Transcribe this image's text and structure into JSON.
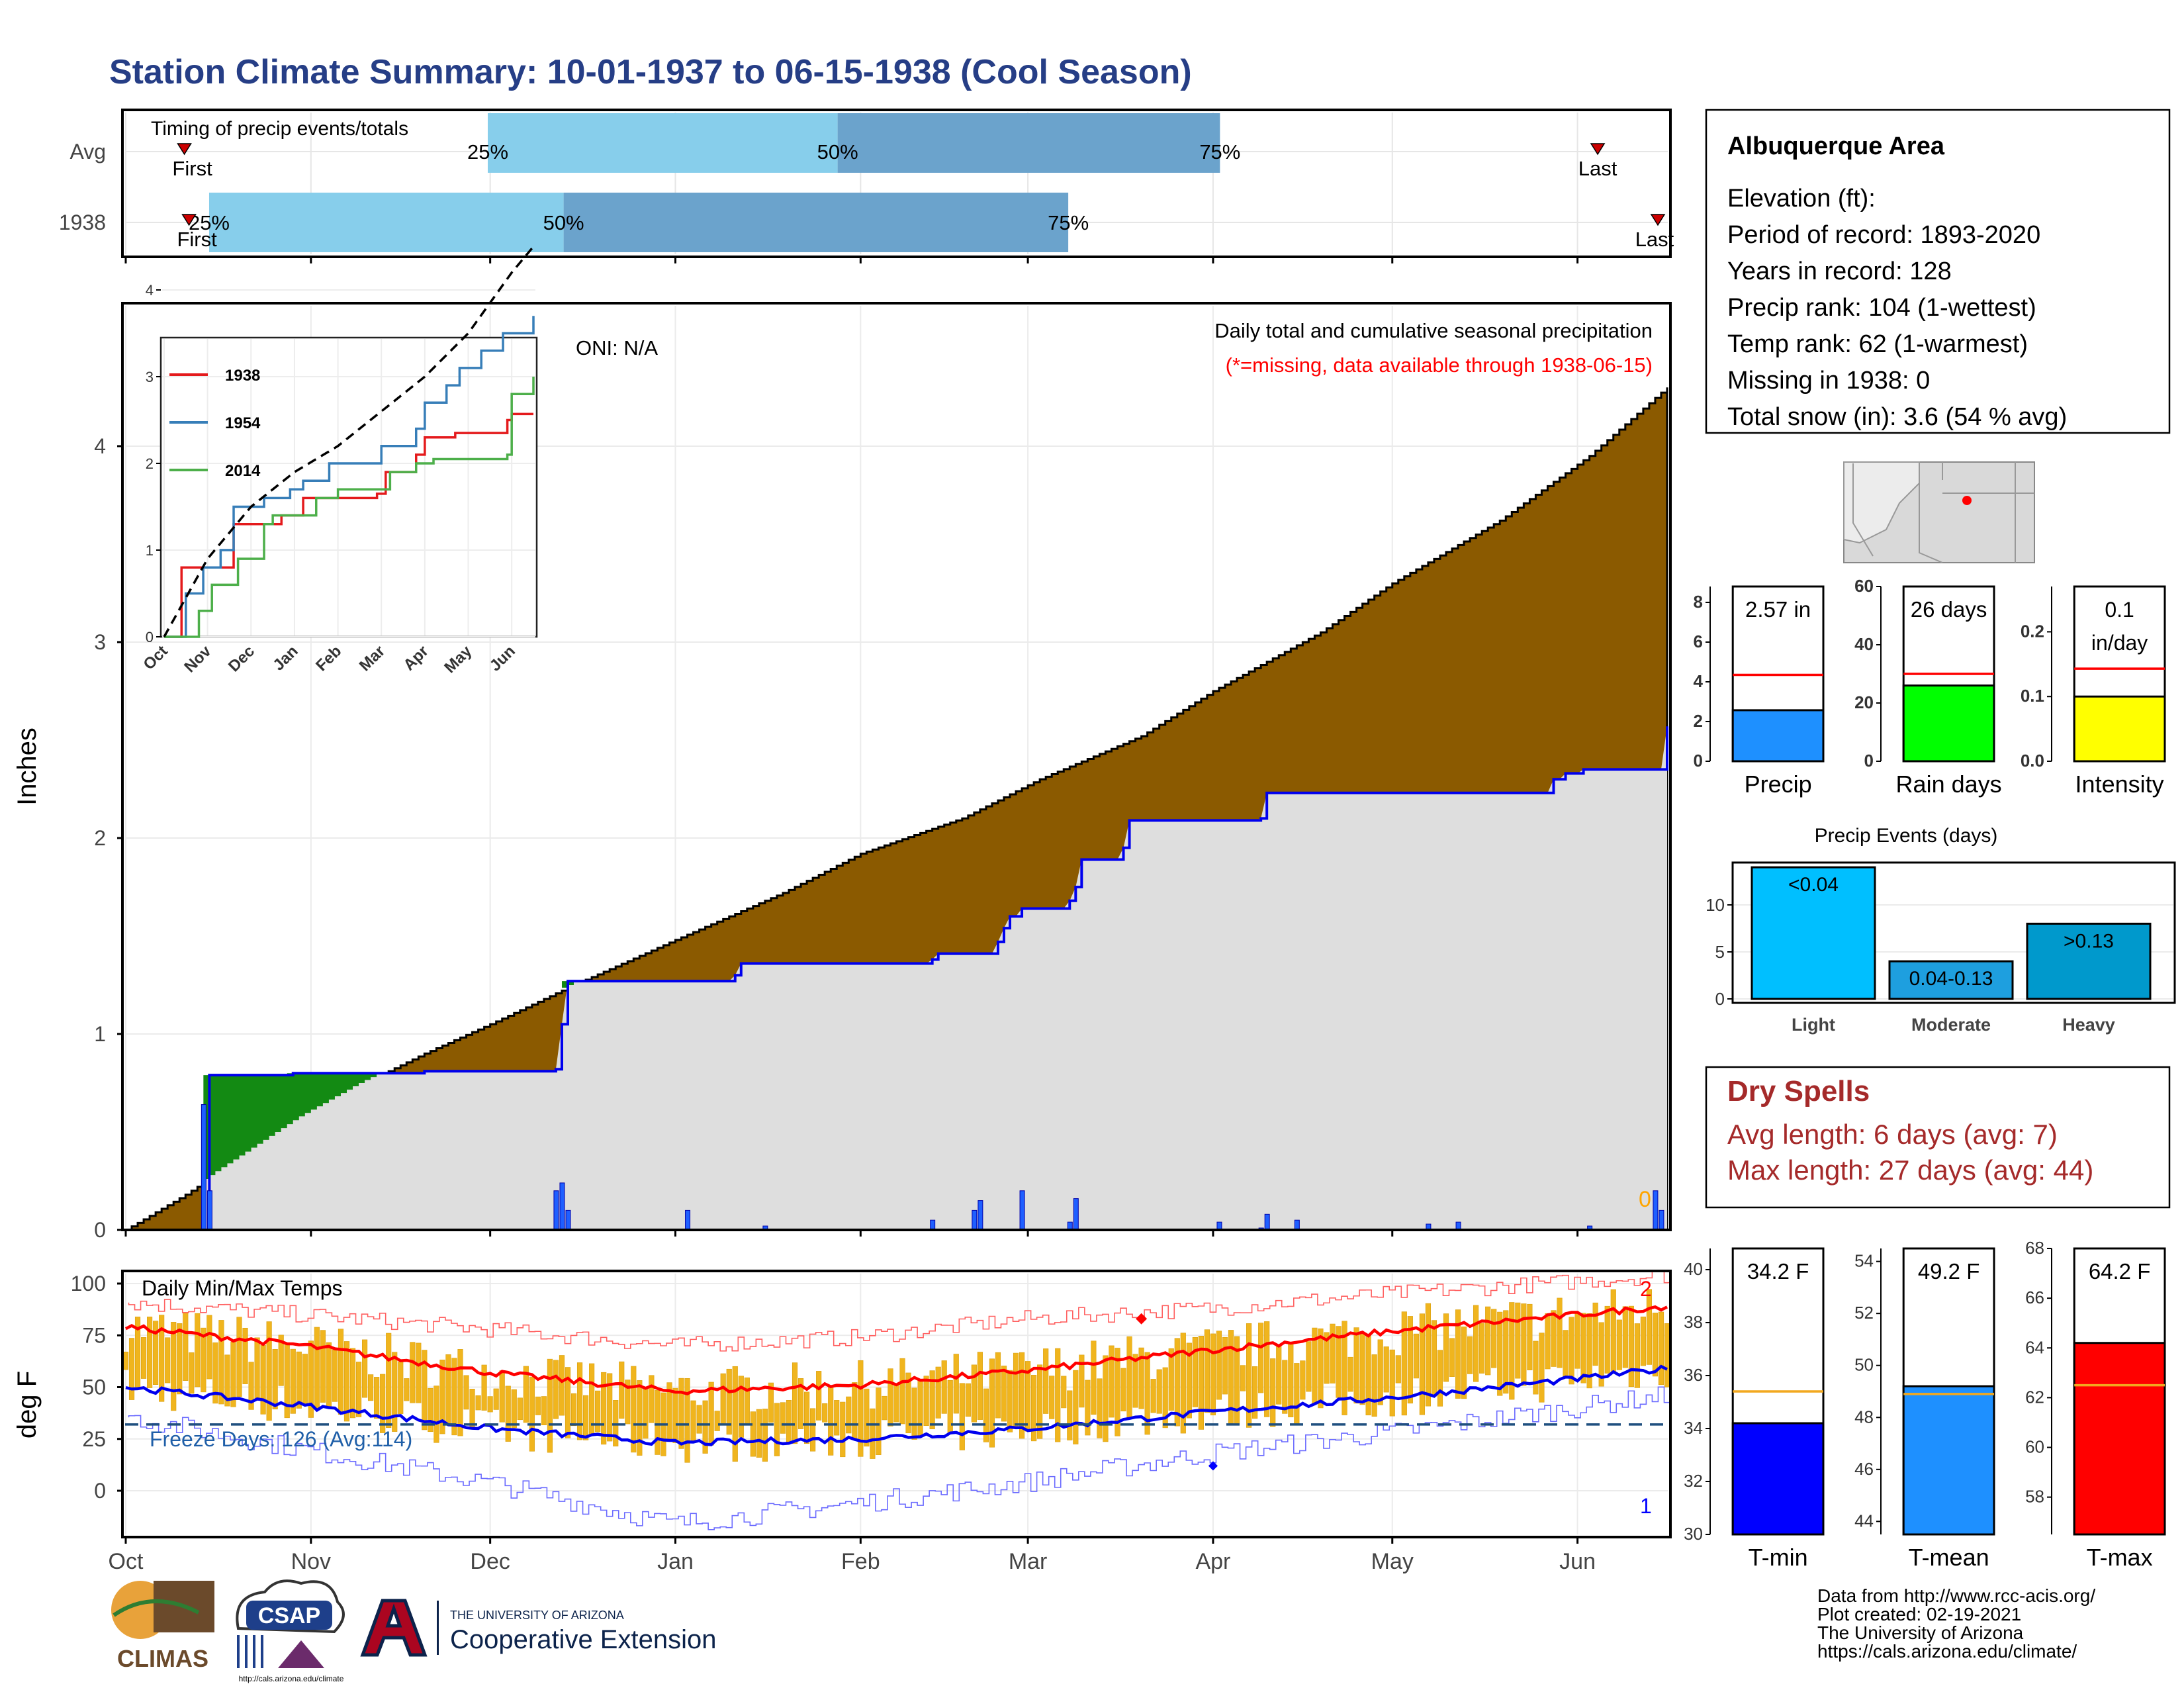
{
  "title": "Station Climate Summary: 10-01-1937 to 06-15-1938 (Cool Season)",
  "timing": {
    "header": "Timing of precip events/totals",
    "rows": [
      {
        "label": "Avg",
        "first_label": "First",
        "last_label": "Last",
        "first": 0.04,
        "last": 0.953,
        "p25": 0.236,
        "p50": 0.462,
        "p75": 0.709,
        "p25_label": "25%",
        "p50_label": "50%",
        "p75_label": "75%"
      },
      {
        "label": "1938",
        "first_label": "First",
        "last_label": "Last",
        "first": 0.043,
        "last": 1.0,
        "p25": 0.056,
        "p50": 0.285,
        "p75": 0.611,
        "p25_label": "25%",
        "p50_label": "50%",
        "p75_label": "75%"
      }
    ]
  },
  "info": {
    "name": "Albuquerque Area",
    "lines": [
      "Elevation (ft):",
      "Period of record: 1893-2020",
      "Years in record: 128",
      "Precip rank: 104 (1-wettest)",
      "Temp rank: 62 (1-warmest)",
      "Missing in 1938: 0",
      "Total snow (in): 3.6 (54 % avg)"
    ]
  },
  "precip_panel": {
    "ylabel": "Inches",
    "oni": "ONI: N/A",
    "caption1": "Daily total and cumulative seasonal precipitation",
    "caption2": "(*=missing, data available through 1938-06-15)",
    "yticks": [
      "0",
      "1",
      "2",
      "3",
      "4"
    ],
    "corner_mark": "0"
  },
  "inset": {
    "yticks": [
      "0",
      "1",
      "2",
      "3",
      "4"
    ],
    "months": [
      "Oct",
      "Nov",
      "Dec",
      "Jan",
      "Feb",
      "Mar",
      "Apr",
      "May",
      "Jun"
    ],
    "legend": [
      {
        "name": "1938",
        "color": "#e41a1c"
      },
      {
        "name": "1954",
        "color": "#377eb8"
      },
      {
        "name": "2014",
        "color": "#4daf4a"
      }
    ]
  },
  "temp_panel": {
    "ylabel": "deg F",
    "label": "Daily Min/Max Temps",
    "freeze": "Freeze Days: 126 (Avg:114)",
    "yticks": [
      "0",
      "25",
      "50",
      "75",
      "100"
    ],
    "mark_top": "2",
    "mark_bottom": "1"
  },
  "x_months": [
    "Oct",
    "Nov",
    "Dec",
    "Jan",
    "Feb",
    "Mar",
    "Apr",
    "May",
    "Jun"
  ],
  "mini_precip": {
    "value_label": "2.57 in",
    "axis_label": "Precip",
    "yticks": [
      "0",
      "2",
      "4",
      "6",
      "8"
    ],
    "value": 2.57,
    "avg": 4.35,
    "max": 8.8,
    "color": "#1e90ff"
  },
  "mini_raindays": {
    "value_label": "26 days",
    "axis_label": "Rain days",
    "yticks": [
      "0",
      "20",
      "40",
      "60"
    ],
    "value": 26,
    "avg": 30,
    "max": 60,
    "color": "#00ff00"
  },
  "mini_intensity": {
    "value_label_1": "0.1",
    "value_label_2": "in/day",
    "axis_label": "Intensity",
    "yticks": [
      "0.0",
      "0.1",
      "0.2"
    ],
    "value": 0.1,
    "avg": 0.143,
    "max": 0.27,
    "color": "#ffff00"
  },
  "events": {
    "title": "Precip Events (days)",
    "yticks": [
      "0",
      "5",
      "10"
    ],
    "categories": [
      "Light",
      "Moderate",
      "Heavy"
    ],
    "labels": [
      "<0.04",
      "0.04-0.13",
      ">0.13"
    ],
    "values": [
      14,
      4,
      8
    ],
    "colors": [
      "#00bfff",
      "#1e9fdf",
      "#0099cc"
    ]
  },
  "dry": {
    "title": "Dry Spells",
    "avg_line": "Avg length: 6 days (avg: 7)",
    "max_line": "Max length: 27 days (avg: 44)"
  },
  "mini_tmin": {
    "value_label": "34.2 F",
    "axis_label": "T-min",
    "yticks": [
      "30",
      "32",
      "34",
      "36",
      "38",
      "40"
    ],
    "min": 30,
    "max": 40.8,
    "value": 34.2,
    "avg": 35.4,
    "color": "#0000ff"
  },
  "mini_tmean": {
    "value_label": "49.2 F",
    "axis_label": "T-mean",
    "yticks": [
      "44",
      "46",
      "48",
      "50",
      "52",
      "54"
    ],
    "min": 43.5,
    "max": 54.5,
    "value": 49.2,
    "avg": 48.9,
    "color": "#1e90ff"
  },
  "mini_tmax": {
    "value_label": "64.2 F",
    "axis_label": "T-max",
    "yticks": [
      "58",
      "60",
      "62",
      "64",
      "66",
      "68"
    ],
    "min": 56.5,
    "max": 68,
    "value": 64.2,
    "avg": 62.5,
    "color": "#ff0000"
  },
  "footer": [
    "Data from http://www.rcc-acis.org/",
    "Plot created: 02-19-2021",
    "The University of Arizona",
    "https://cals.arizona.edu/climate/"
  ],
  "logos": {
    "climas": "CLIMAS",
    "csap": "CSAP",
    "csap_url": "http://cals.arizona.edu/climate",
    "ua_small": "THE UNIVERSITY OF ARIZONA",
    "ua_big": "Cooperative Extension"
  },
  "chart_data": [
    {
      "type": "area",
      "name": "cumulative_precip",
      "x_unit": "day of season (0 = Oct 1)",
      "avg_cumulative": {
        "x": [
          0,
          10,
          20,
          30,
          40,
          50,
          61,
          75,
          92,
          110,
          123,
          140,
          153,
          170,
          182,
          200,
          212,
          230,
          245,
          258
        ],
        "y": [
          0,
          0.18,
          0.38,
          0.58,
          0.75,
          0.9,
          1.05,
          1.25,
          1.48,
          1.72,
          1.92,
          2.1,
          2.3,
          2.52,
          2.75,
          3.05,
          3.3,
          3.62,
          3.95,
          4.3
        ]
      },
      "year_cumulative": {
        "x": [
          0,
          13,
          14,
          27,
          28,
          49,
          50,
          61,
          72,
          73,
          74,
          102,
          103,
          135,
          136,
          145,
          146,
          147,
          148,
          150,
          158,
          159,
          160,
          166,
          167,
          168,
          190,
          191,
          239,
          241,
          244,
          258
        ],
        "y": [
          0,
          0,
          0.79,
          0.79,
          0.8,
          0.8,
          0.81,
          0.81,
          0.82,
          1.05,
          1.27,
          1.3,
          1.36,
          1.38,
          1.41,
          1.41,
          1.47,
          1.54,
          1.6,
          1.64,
          1.68,
          1.75,
          1.89,
          1.89,
          1.95,
          2.09,
          2.1,
          2.23,
          2.3,
          2.33,
          2.35,
          2.57
        ]
      },
      "daily_bars": {
        "x": [
          13,
          14,
          72,
          73,
          74,
          94,
          107,
          135,
          142,
          143,
          150,
          158,
          159,
          183,
          190,
          191,
          196,
          218,
          223,
          245,
          256,
          257
        ],
        "y": [
          0.64,
          0.2,
          0.2,
          0.24,
          0.1,
          0.1,
          0.02,
          0.05,
          0.1,
          0.15,
          0.2,
          0.04,
          0.16,
          0.04,
          0.01,
          0.08,
          0.05,
          0.03,
          0.04,
          0.02,
          0.2,
          0.1
        ]
      },
      "ylim": [
        0,
        4.6
      ],
      "xlim": [
        0,
        258
      ]
    },
    {
      "type": "line",
      "name": "daily_temps",
      "x_unit": "day of season (0 = Oct 1)",
      "normal_max": {
        "x": [
          0,
          30,
          61,
          92,
          123,
          151,
          182,
          212,
          243,
          258
        ],
        "y": [
          79,
          70,
          57,
          48,
          51,
          58,
          68,
          77,
          85,
          89
        ]
      },
      "normal_min": {
        "x": [
          0,
          30,
          61,
          92,
          123,
          151,
          182,
          212,
          243,
          258
        ],
        "y": [
          50,
          41,
          30,
          23,
          25,
          30,
          38,
          45,
          54,
          59
        ]
      },
      "record_high": {
        "x": [
          0,
          30,
          61,
          92,
          123,
          151,
          182,
          212,
          243,
          258
        ],
        "y": [
          91,
          85,
          78,
          70,
          74,
          83,
          88,
          95,
          101,
          104
        ]
      },
      "record_low": {
        "x": [
          0,
          30,
          61,
          92,
          123,
          151,
          182,
          212,
          243,
          258
        ],
        "y": [
          36,
          20,
          4,
          -16,
          -6,
          4,
          18,
          28,
          40,
          46
        ]
      },
      "freeze_line": 32,
      "ylim": [
        -20,
        105
      ]
    },
    {
      "type": "line",
      "name": "inset_cumulative",
      "series": [
        {
          "name": "1938",
          "x": [
            0,
            0.35,
            0.4,
            1.1,
            1.6,
            2.7,
            3.2,
            4.9,
            5.1,
            5.8,
            6.0,
            6.7,
            7.0,
            7.9,
            8.0,
            8.5
          ],
          "y": [
            0,
            0,
            0.8,
            0.8,
            1.3,
            1.4,
            1.6,
            1.65,
            1.9,
            2.1,
            2.3,
            2.35,
            2.35,
            2.5,
            2.57,
            2.57
          ]
        },
        {
          "name": "1954",
          "x": [
            0,
            0.5,
            0.9,
            1.3,
            1.6,
            2.3,
            2.9,
            3.2,
            3.8,
            5.0,
            5.8,
            6.0,
            6.5,
            6.8,
            7.3,
            7.8,
            8.5
          ],
          "y": [
            0,
            0.5,
            0.8,
            1.0,
            1.5,
            1.6,
            1.7,
            1.8,
            2.0,
            2.2,
            2.4,
            2.7,
            2.9,
            3.1,
            3.3,
            3.5,
            3.7
          ]
        },
        {
          "name": "2014",
          "x": [
            0,
            0.8,
            1.1,
            1.7,
            2.3,
            2.5,
            3.5,
            4.0,
            5.2,
            5.8,
            6.2,
            7.9,
            8.0,
            8.5
          ],
          "y": [
            0,
            0.3,
            0.6,
            0.9,
            1.3,
            1.4,
            1.6,
            1.7,
            1.9,
            2.0,
            2.05,
            2.1,
            2.8,
            3.0
          ]
        }
      ],
      "avg": {
        "x": [
          0,
          1,
          2,
          3,
          4,
          5,
          6,
          7,
          8,
          8.5
        ],
        "y": [
          0,
          0.9,
          1.5,
          1.9,
          2.2,
          2.6,
          3.0,
          3.5,
          4.2,
          4.5
        ]
      },
      "ylim": [
        0,
        4.4
      ],
      "xlim": [
        0,
        8.5
      ]
    }
  ]
}
